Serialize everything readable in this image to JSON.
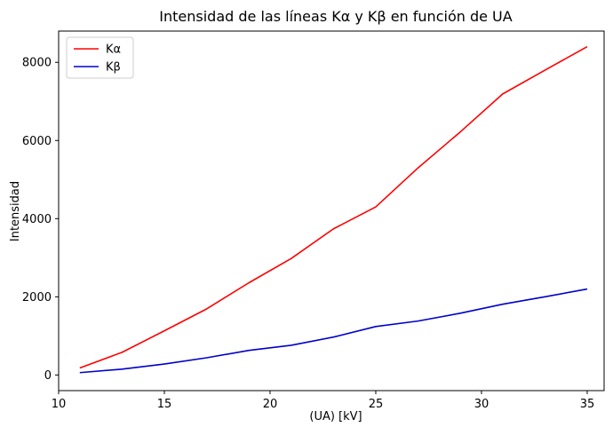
{
  "chart_data": {
    "type": "line",
    "title": "Intensidad de las líneas Kα y Kβ en función de UA",
    "xlabel": "(UA) [kV]",
    "ylabel": "Intensidad",
    "xlim": [
      10.0,
      35.8
    ],
    "ylim": [
      -400,
      8800
    ],
    "xticks": [
      10,
      15,
      20,
      25,
      30,
      35
    ],
    "yticks": [
      0,
      2000,
      4000,
      6000,
      8000
    ],
    "grid": false,
    "legend_position": "top-left",
    "series": [
      {
        "name": "Kα",
        "color": "#ff0000",
        "x": [
          11,
          13,
          15,
          17,
          19,
          21,
          23,
          25,
          27,
          29,
          31,
          33,
          35
        ],
        "y": [
          180,
          580,
          1130,
          1690,
          2360,
          2980,
          3740,
          4300,
          5300,
          6220,
          7190,
          7800,
          8400
        ]
      },
      {
        "name": "Kβ",
        "color": "#0000cc",
        "x": [
          11,
          13,
          15,
          17,
          19,
          21,
          23,
          25,
          27,
          29,
          31,
          33,
          35
        ],
        "y": [
          60,
          150,
          280,
          440,
          630,
          760,
          970,
          1240,
          1380,
          1580,
          1810,
          2000,
          2200
        ]
      }
    ]
  }
}
